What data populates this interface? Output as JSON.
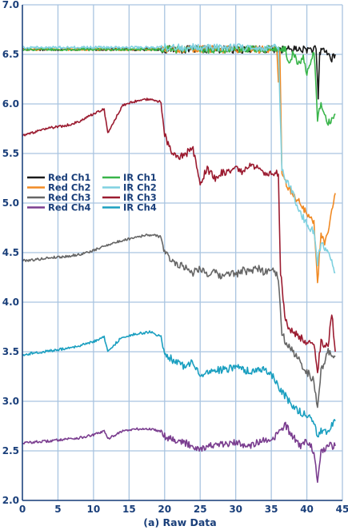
{
  "chart_data": {
    "type": "line",
    "title": "",
    "xlabel": "(a) Raw Data",
    "ylabel": "",
    "xlim": [
      0,
      45
    ],
    "ylim": [
      2.0,
      7.0
    ],
    "xticks": [
      "0",
      "5",
      "10",
      "15",
      "20",
      "25",
      "30",
      "35",
      "40",
      "45"
    ],
    "yticks": [
      "2.0",
      "2.5",
      "3.0",
      "3.5",
      "4.0",
      "4.5",
      "5.0",
      "5.5",
      "6.0",
      "6.5",
      "7.0"
    ],
    "grid": true,
    "legend_position": "left-middle",
    "series": [
      {
        "name": "Red Ch1",
        "color": "#1a1a1a",
        "x": [
          0,
          36,
          38,
          40,
          41,
          41.3,
          41.5,
          41.6,
          41.8,
          42,
          42.5,
          43,
          43.5,
          44
        ],
        "y": [
          6.55,
          6.55,
          6.55,
          6.55,
          6.55,
          6.55,
          6.2,
          6.05,
          6.5,
          6.55,
          6.55,
          6.5,
          6.45,
          6.5
        ]
      },
      {
        "name": "Red Ch2",
        "color": "#f08a24",
        "x": [
          0,
          35.8,
          36,
          36.2,
          36.5,
          37,
          38,
          39,
          40,
          41,
          41.5,
          42,
          42.5,
          43,
          43.5,
          44
        ],
        "y": [
          6.55,
          6.55,
          6.2,
          6.55,
          5.3,
          5.2,
          5.1,
          5.0,
          4.9,
          4.8,
          4.2,
          4.7,
          4.6,
          4.7,
          4.9,
          5.1
        ]
      },
      {
        "name": "Red Ch3",
        "color": "#666666",
        "x": [
          0,
          2,
          4,
          6,
          8,
          10,
          12,
          14,
          16,
          18,
          19.5,
          20,
          21,
          22,
          23,
          24,
          25,
          26,
          27,
          28,
          29,
          30,
          31,
          32,
          33,
          34,
          35,
          36,
          36.5,
          37,
          38,
          39,
          40,
          41,
          41.5,
          42,
          43,
          44
        ],
        "y": [
          4.42,
          4.43,
          4.45,
          4.46,
          4.48,
          4.52,
          4.58,
          4.62,
          4.66,
          4.68,
          4.66,
          4.5,
          4.42,
          4.38,
          4.35,
          4.3,
          4.35,
          4.28,
          4.3,
          4.25,
          4.3,
          4.28,
          4.32,
          4.3,
          4.35,
          4.3,
          4.35,
          4.25,
          3.7,
          3.6,
          3.5,
          3.4,
          3.3,
          3.2,
          2.95,
          3.3,
          3.5,
          3.45
        ]
      },
      {
        "name": "Red Ch4",
        "color": "#7a3d8f",
        "x": [
          0,
          2,
          4,
          6,
          8,
          10,
          11.5,
          12,
          14,
          16,
          18,
          19.5,
          20,
          22,
          24,
          25,
          26,
          28,
          30,
          32,
          34,
          35,
          36,
          37,
          38,
          39,
          40,
          41,
          41.5,
          42,
          43,
          44
        ],
        "y": [
          2.58,
          2.59,
          2.6,
          2.62,
          2.63,
          2.66,
          2.7,
          2.62,
          2.7,
          2.72,
          2.72,
          2.7,
          2.65,
          2.6,
          2.55,
          2.52,
          2.55,
          2.56,
          2.58,
          2.56,
          2.6,
          2.58,
          2.7,
          2.75,
          2.65,
          2.55,
          2.6,
          2.5,
          2.15,
          2.5,
          2.55,
          2.55
        ]
      },
      {
        "name": "IR Ch1",
        "color": "#39b54a",
        "x": [
          0,
          37,
          37.5,
          38,
          39,
          39.5,
          40,
          41,
          41.5,
          42,
          43,
          44
        ],
        "y": [
          6.55,
          6.55,
          6.4,
          6.5,
          6.4,
          6.5,
          6.3,
          6.55,
          5.85,
          6.0,
          5.8,
          5.9
        ]
      },
      {
        "name": "IR Ch2",
        "color": "#7fd1e0",
        "x": [
          0,
          36,
          36.5,
          37,
          38,
          39,
          40,
          41,
          41.5,
          42,
          43,
          44
        ],
        "y": [
          6.57,
          6.57,
          5.35,
          5.25,
          5.1,
          4.9,
          4.8,
          4.7,
          4.4,
          4.6,
          4.5,
          4.3
        ]
      },
      {
        "name": "IR Ch3",
        "color": "#9b1b30",
        "x": [
          0,
          2,
          4,
          6,
          8,
          10,
          11.5,
          12,
          14,
          16,
          18,
          19.5,
          20,
          21,
          22,
          23,
          24,
          25,
          26,
          27,
          28,
          29,
          30,
          31,
          32,
          33,
          34,
          35,
          36,
          36.3,
          37,
          38,
          39,
          40,
          41,
          41.5,
          42,
          43,
          43.5,
          44
        ],
        "y": [
          5.68,
          5.72,
          5.76,
          5.78,
          5.82,
          5.9,
          5.95,
          5.7,
          5.98,
          6.03,
          6.05,
          6.02,
          5.7,
          5.5,
          5.45,
          5.5,
          5.55,
          5.2,
          5.35,
          5.25,
          5.3,
          5.32,
          5.35,
          5.3,
          5.38,
          5.35,
          5.3,
          5.3,
          5.3,
          4.3,
          3.8,
          3.7,
          3.65,
          3.6,
          3.55,
          3.3,
          3.6,
          3.55,
          3.9,
          3.5
        ]
      },
      {
        "name": "IR Ch4",
        "color": "#1a9fc0",
        "x": [
          0,
          2,
          4,
          6,
          8,
          10,
          11.5,
          12,
          14,
          16,
          18,
          19.5,
          20,
          21,
          22,
          23,
          24,
          25,
          26,
          28,
          30,
          32,
          34,
          35,
          36,
          37,
          38,
          39,
          40,
          41,
          41.5,
          42,
          43,
          44
        ],
        "y": [
          3.47,
          3.49,
          3.51,
          3.53,
          3.56,
          3.6,
          3.65,
          3.5,
          3.65,
          3.68,
          3.7,
          3.65,
          3.5,
          3.42,
          3.38,
          3.35,
          3.4,
          3.25,
          3.3,
          3.32,
          3.34,
          3.3,
          3.32,
          3.28,
          3.15,
          3.05,
          2.95,
          2.9,
          2.85,
          2.8,
          2.62,
          2.7,
          2.7,
          2.8
        ]
      }
    ]
  }
}
